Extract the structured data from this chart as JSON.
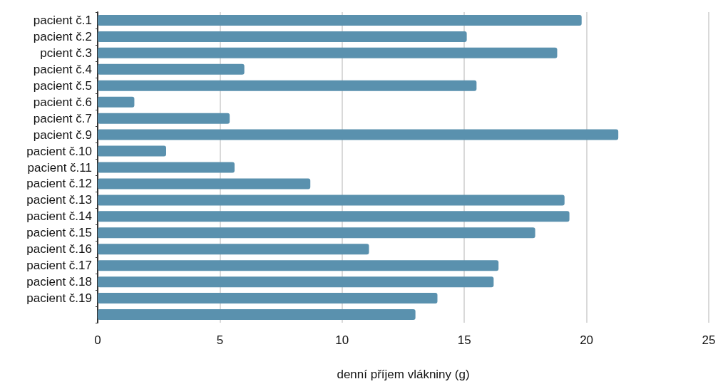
{
  "chart_data": {
    "type": "bar",
    "orientation": "horizontal",
    "xlabel": "denní příjem vlákniny (g)",
    "categories": [
      "pacient č.1",
      "pacient č.2",
      "pcient č.3",
      "pacient č.4",
      "pacient č.5",
      "pacient č.6",
      "pacient č.7",
      "pacient č.9",
      "pacient č.10",
      "pacient č.11",
      "pacient č.12",
      "pacient č.13",
      "pacient č.14",
      "pacient č.15",
      "pacient č.16",
      "pacient č.17",
      "pacient č.18",
      "pacient č.19",
      null
    ],
    "values": [
      19.8,
      15.1,
      18.8,
      6.0,
      15.5,
      1.5,
      5.4,
      21.3,
      2.8,
      5.6,
      8.7,
      19.1,
      19.3,
      17.9,
      11.1,
      16.4,
      16.2,
      13.9,
      13.0
    ],
    "color": "#5a91ae",
    "xlim": [
      0,
      25
    ],
    "xticks": [
      0,
      5,
      10,
      15,
      20,
      25
    ],
    "grid": "x"
  }
}
